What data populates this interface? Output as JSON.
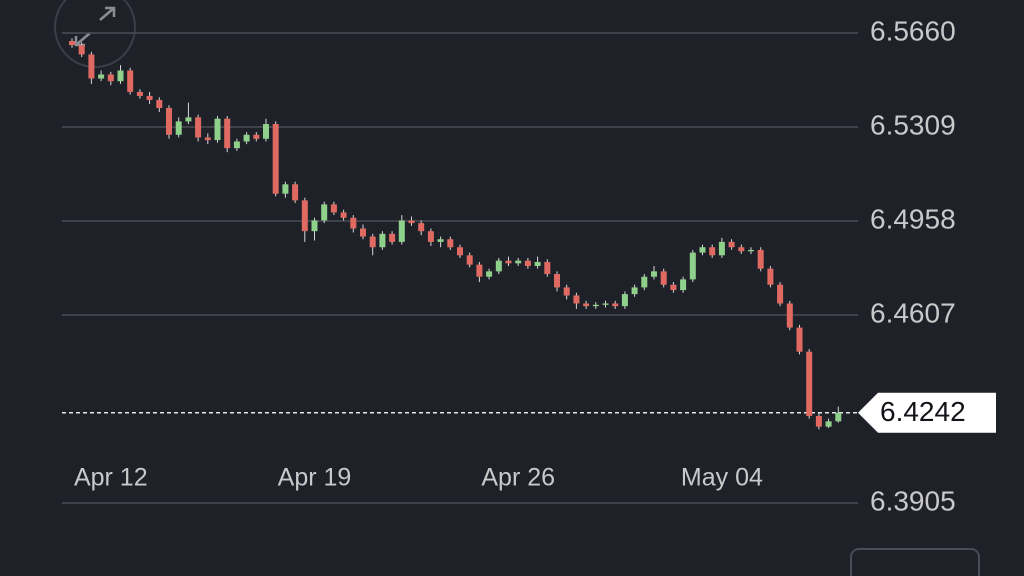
{
  "chart_data": {
    "type": "candlestick",
    "up_color": "#8fd18b",
    "down_color": "#e06a61",
    "grid": true,
    "ylim": [
      6.3905,
      6.566
    ],
    "yticks": [
      {
        "value": 6.566,
        "label": "6.5660"
      },
      6.5309,
      6.4958,
      6.4607,
      6.3905
    ],
    "categories": [
      null,
      null,
      null,
      null,
      "Apr 12",
      null,
      null,
      null,
      null,
      null,
      null,
      null,
      null,
      null,
      null,
      null,
      null,
      null,
      null,
      null,
      null,
      null,
      null,
      null,
      null,
      "Apr 19",
      null,
      null,
      null,
      null,
      null,
      null,
      null,
      null,
      null,
      null,
      null,
      null,
      null,
      null,
      null,
      null,
      null,
      null,
      null,
      null,
      "Apr 26",
      null,
      null,
      null,
      null,
      null,
      null,
      null,
      null,
      null,
      null,
      null,
      null,
      null,
      null,
      null,
      null,
      null,
      null,
      null,
      null,
      "May 04",
      null,
      null,
      null,
      null,
      null,
      null,
      null,
      null,
      null,
      null,
      null,
      null
    ],
    "candles": [
      [
        6.563,
        6.564,
        6.5605,
        6.5615
      ],
      [
        6.5615,
        6.5625,
        6.557,
        6.558
      ],
      [
        6.558,
        6.559,
        6.547,
        6.549
      ],
      [
        6.549,
        6.552,
        6.548,
        6.5505
      ],
      [
        6.5505,
        6.5515,
        6.5465,
        6.548
      ],
      [
        6.548,
        6.554,
        6.547,
        6.552
      ],
      [
        6.552,
        6.553,
        6.543,
        6.544
      ],
      [
        6.544,
        6.545,
        6.5415,
        6.5425
      ],
      [
        6.5425,
        6.544,
        6.5395,
        6.541
      ],
      [
        6.541,
        6.542,
        6.5365,
        6.538
      ],
      [
        6.538,
        6.539,
        6.5265,
        6.528
      ],
      [
        6.528,
        6.5345,
        6.527,
        6.533
      ],
      [
        6.533,
        6.54,
        6.532,
        6.5345
      ],
      [
        6.5345,
        6.5355,
        6.5255,
        6.527
      ],
      [
        6.527,
        6.5285,
        6.5245,
        6.526
      ],
      [
        6.526,
        6.535,
        6.525,
        6.534
      ],
      [
        6.534,
        6.535,
        6.5215,
        6.523
      ],
      [
        6.523,
        6.5265,
        6.522,
        6.5255
      ],
      [
        6.5255,
        6.529,
        6.5245,
        6.528
      ],
      [
        6.528,
        6.529,
        6.5255,
        6.5265
      ],
      [
        6.5265,
        6.534,
        6.5255,
        6.532
      ],
      [
        6.532,
        6.533,
        6.505,
        6.506
      ],
      [
        6.506,
        6.5105,
        6.5045,
        6.5095
      ],
      [
        6.5095,
        6.5105,
        6.5025,
        6.5035
      ],
      [
        6.5035,
        6.5045,
        6.488,
        6.492
      ],
      [
        6.492,
        6.497,
        6.4885,
        6.496
      ],
      [
        6.496,
        6.503,
        6.495,
        6.502
      ],
      [
        6.502,
        6.503,
        6.498,
        6.499
      ],
      [
        6.499,
        6.5,
        6.496,
        6.497
      ],
      [
        6.497,
        6.498,
        6.4915,
        6.493
      ],
      [
        6.493,
        6.4945,
        6.489,
        6.49
      ],
      [
        6.49,
        6.491,
        6.483,
        6.486
      ],
      [
        6.486,
        6.492,
        6.485,
        6.491
      ],
      [
        6.491,
        6.492,
        6.487,
        6.488
      ],
      [
        6.488,
        6.498,
        6.487,
        6.496
      ],
      [
        6.496,
        6.4975,
        6.494,
        6.495
      ],
      [
        6.495,
        6.496,
        6.4905,
        6.492
      ],
      [
        6.492,
        6.493,
        6.4865,
        6.488
      ],
      [
        6.488,
        6.49,
        6.486,
        6.489
      ],
      [
        6.489,
        6.49,
        6.485,
        6.486
      ],
      [
        6.486,
        6.487,
        6.482,
        6.483
      ],
      [
        6.483,
        6.484,
        6.4785,
        6.4795
      ],
      [
        6.4795,
        6.4805,
        6.473,
        6.475
      ],
      [
        6.475,
        6.478,
        6.474,
        6.477
      ],
      [
        6.477,
        6.482,
        6.476,
        6.481
      ],
      [
        6.481,
        6.4825,
        6.479,
        6.48
      ],
      [
        6.48,
        6.482,
        6.479,
        6.481
      ],
      [
        6.481,
        6.482,
        6.478,
        6.479
      ],
      [
        6.479,
        6.4825,
        6.478,
        6.4805
      ],
      [
        6.4805,
        6.4815,
        6.475,
        6.476
      ],
      [
        6.476,
        6.477,
        6.4695,
        6.471
      ],
      [
        6.471,
        6.472,
        6.4665,
        6.468
      ],
      [
        6.468,
        6.469,
        6.463,
        6.465
      ],
      [
        6.465,
        6.466,
        6.463,
        6.464
      ],
      [
        6.464,
        6.4655,
        6.463,
        6.4645
      ],
      [
        6.4645,
        6.466,
        6.4635,
        6.465
      ],
      [
        6.465,
        6.466,
        6.463,
        6.464
      ],
      [
        6.464,
        6.4695,
        6.463,
        6.4685
      ],
      [
        6.4685,
        6.472,
        6.4675,
        6.471
      ],
      [
        6.471,
        6.476,
        6.47,
        6.475
      ],
      [
        6.475,
        6.479,
        6.474,
        6.477
      ],
      [
        6.477,
        6.478,
        6.471,
        6.472
      ],
      [
        6.472,
        6.473,
        6.469,
        6.47
      ],
      [
        6.47,
        6.475,
        6.469,
        6.474
      ],
      [
        6.474,
        6.485,
        6.473,
        6.484
      ],
      [
        6.484,
        6.487,
        6.483,
        6.486
      ],
      [
        6.486,
        6.487,
        6.482,
        6.483
      ],
      [
        6.483,
        6.4895,
        6.482,
        6.488
      ],
      [
        6.488,
        6.489,
        6.485,
        6.486
      ],
      [
        6.486,
        6.487,
        6.4835,
        6.4845
      ],
      [
        6.4845,
        6.486,
        6.4835,
        6.485
      ],
      [
        6.485,
        6.486,
        6.477,
        6.478
      ],
      [
        6.478,
        6.479,
        6.471,
        6.472
      ],
      [
        6.472,
        6.473,
        6.464,
        6.465
      ],
      [
        6.465,
        6.466,
        6.455,
        6.456
      ],
      [
        6.456,
        6.457,
        6.446,
        6.447
      ],
      [
        6.447,
        6.448,
        6.422,
        6.423
      ],
      [
        6.423,
        6.424,
        6.418,
        6.419
      ],
      [
        6.419,
        6.422,
        6.4185,
        6.421
      ],
      [
        6.421,
        6.4265,
        6.4205,
        6.4242
      ]
    ]
  }
}
